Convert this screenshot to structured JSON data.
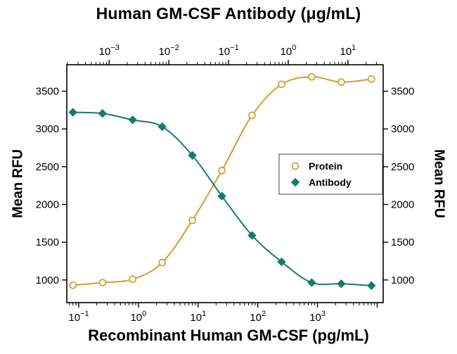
{
  "title": "Human GM-CSF Antibody (μg/mL)",
  "labels": {
    "x_bottom": "Recombinant Human GM-CSF (pg/mL)",
    "y_left": "Mean RFU",
    "y_right": "Mean RFU"
  },
  "chart_data": {
    "type": "line-scatter",
    "title": "Human GM-CSF Antibody (μg/mL)",
    "xlabel_bottom": "Recombinant Human GM-CSF (pg/mL)",
    "xlabel_top": "Human GM-CSF Antibody (μg/mL)",
    "ylabel": "Mean RFU",
    "x_scale": "log10",
    "grid": false,
    "bottom_axis": {
      "unit": "pg/mL",
      "min_exp": -1.2,
      "max_exp": 4.1,
      "major_tick_exps": [
        -1,
        0,
        1,
        2,
        3
      ]
    },
    "top_axis": {
      "unit": "μg/mL",
      "min_exp": -3.71,
      "max_exp": 1.59,
      "major_tick_exps": [
        -3,
        -2,
        -1,
        0,
        1
      ]
    },
    "y_axis": {
      "min": 700,
      "max": 3850,
      "major_ticks": [
        1000,
        1500,
        2000,
        2500,
        3000,
        3500
      ]
    },
    "legend": {
      "position": "middle-right",
      "entries": [
        "Protein",
        "Antibody"
      ]
    },
    "series": [
      {
        "name": "Protein",
        "marker": "open-circle",
        "color": "#D69B2E",
        "x": [
          0.08,
          0.25,
          0.8,
          2.5,
          8,
          25,
          80,
          250,
          800,
          2500,
          8000
        ],
        "y": [
          930,
          965,
          1010,
          1230,
          1790,
          2450,
          3180,
          3590,
          3690,
          3620,
          3660
        ]
      },
      {
        "name": "Antibody",
        "marker": "filled-diamond",
        "color": "#17796E",
        "x": [
          0.08,
          0.25,
          0.8,
          2.5,
          8,
          25,
          80,
          250,
          800,
          2500,
          8000
        ],
        "y": [
          3220,
          3205,
          3120,
          3030,
          2650,
          2110,
          1590,
          1240,
          965,
          950,
          925
        ]
      }
    ]
  }
}
